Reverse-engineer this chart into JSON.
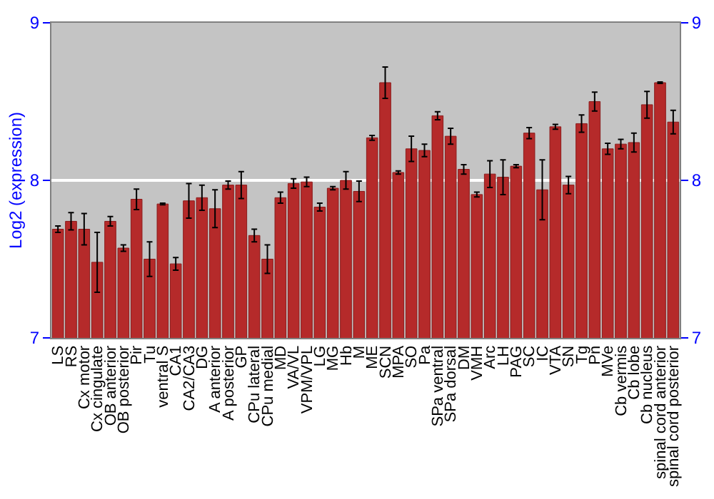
{
  "chart_data": {
    "type": "bar",
    "ylabel": "Log2 (expression)",
    "categories": [
      "LS",
      "RS",
      "Cx motor",
      "Cx cingulate",
      "OB anterior",
      "OB posterior",
      "Pir",
      "Tu",
      "ventral S",
      "CA1",
      "CA2/CA3",
      "DG",
      "A anterior",
      "A posterior",
      "GP",
      "CPu lateral",
      "CPu medial",
      "MD",
      "VA/VL",
      "VPM/VPL",
      "LG",
      "MG",
      "Hb",
      "M",
      "ME",
      "SCN",
      "MPA",
      "SO",
      "Pa",
      "SPa ventral",
      "SPa dorsal",
      "DM",
      "VMH",
      "Arc",
      "LH",
      "PAG",
      "SC",
      "IC",
      "VTA",
      "SN",
      "Tg",
      "Pn",
      "MVe",
      "Cb vermis",
      "Cb lobe",
      "Cb nucleus",
      "spinal cord anterior",
      "spinal cord posterior"
    ],
    "values": [
      7.69,
      7.74,
      7.69,
      7.48,
      7.74,
      7.57,
      7.88,
      7.5,
      7.85,
      7.47,
      7.87,
      7.89,
      7.82,
      7.97,
      7.97,
      7.65,
      7.5,
      7.89,
      7.98,
      7.99,
      7.83,
      7.95,
      8.0,
      7.93,
      8.27,
      8.62,
      8.05,
      8.2,
      8.19,
      8.41,
      8.28,
      8.07,
      7.91,
      8.04,
      8.02,
      8.09,
      8.3,
      7.94,
      8.34,
      7.97,
      8.36,
      8.5,
      8.2,
      8.23,
      8.24,
      8.48,
      8.62,
      8.37
    ],
    "errors": [
      0.02,
      0.055,
      0.1,
      0.19,
      0.03,
      0.02,
      0.065,
      0.11,
      0.005,
      0.04,
      0.11,
      0.08,
      0.12,
      0.025,
      0.085,
      0.04,
      0.09,
      0.035,
      0.03,
      0.03,
      0.025,
      0.01,
      0.055,
      0.065,
      0.015,
      0.1,
      0.01,
      0.08,
      0.04,
      0.025,
      0.05,
      0.03,
      0.015,
      0.085,
      0.11,
      0.01,
      0.035,
      0.19,
      0.015,
      0.055,
      0.055,
      0.06,
      0.035,
      0.03,
      0.06,
      0.085,
      0.005,
      0.075
    ],
    "color": "#b52a2a",
    "ylim": [
      7,
      9
    ],
    "yticks": [
      7,
      8,
      9
    ],
    "y2lim": [
      7,
      9
    ],
    "y2ticks": [
      7,
      8,
      9
    ],
    "grid": "y",
    "legend": false
  }
}
